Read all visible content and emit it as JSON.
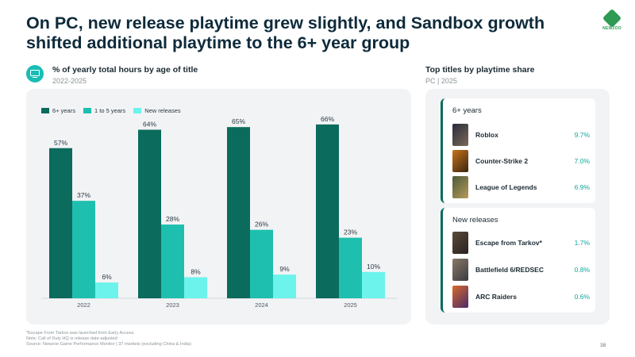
{
  "headline": "On PC, new release playtime grew slightly, and Sandbox growth shifted additional playtime to the 6+ year group",
  "logo": {
    "text": "NEWZOO",
    "icon": "newzoo-logo-icon"
  },
  "left_section": {
    "icon": "monitor-icon",
    "title": "% of yearly total hours by age of title",
    "subtitle": "2022-2025"
  },
  "chart_data": {
    "type": "bar",
    "categories": [
      "2022",
      "2023",
      "2024",
      "2025"
    ],
    "series": [
      {
        "name": "6+ years",
        "color": "#0b6b5d",
        "values": [
          57,
          64,
          65,
          66
        ]
      },
      {
        "name": "1 to 5 years",
        "color": "#1ebfae",
        "values": [
          37,
          28,
          26,
          23
        ]
      },
      {
        "name": "New releases",
        "color": "#6cf3ec",
        "values": [
          6,
          8,
          9,
          10
        ]
      }
    ],
    "value_suffix": "%",
    "ylim": [
      0,
      100
    ],
    "legend_position": "top-left",
    "grid": false
  },
  "right_section": {
    "title": "Top titles by playtime share",
    "subtitle": "PC | 2025",
    "groups": [
      {
        "title": "6+ years",
        "items": [
          {
            "name": "Roblox",
            "value": "9.7%"
          },
          {
            "name": "Counter-Strike 2",
            "value": "7.0%"
          },
          {
            "name": "League of Legends",
            "value": "6.9%"
          }
        ]
      },
      {
        "title": "New releases",
        "items": [
          {
            "name": "Escape from Tarkov*",
            "value": "1.7%"
          },
          {
            "name": "Battlefield 6/REDSEC",
            "value": "0.8%"
          },
          {
            "name": "ARC Raiders",
            "value": "0.6%"
          }
        ]
      }
    ]
  },
  "footnotes": [
    "*Escape From Tarkov was launched from Early Access",
    "Note: Call of Duty HQ is release date-adjusted",
    "Source: Newzoo Game Performance Monitor | 37 markets (excluding China & India)"
  ],
  "page_number": "38"
}
